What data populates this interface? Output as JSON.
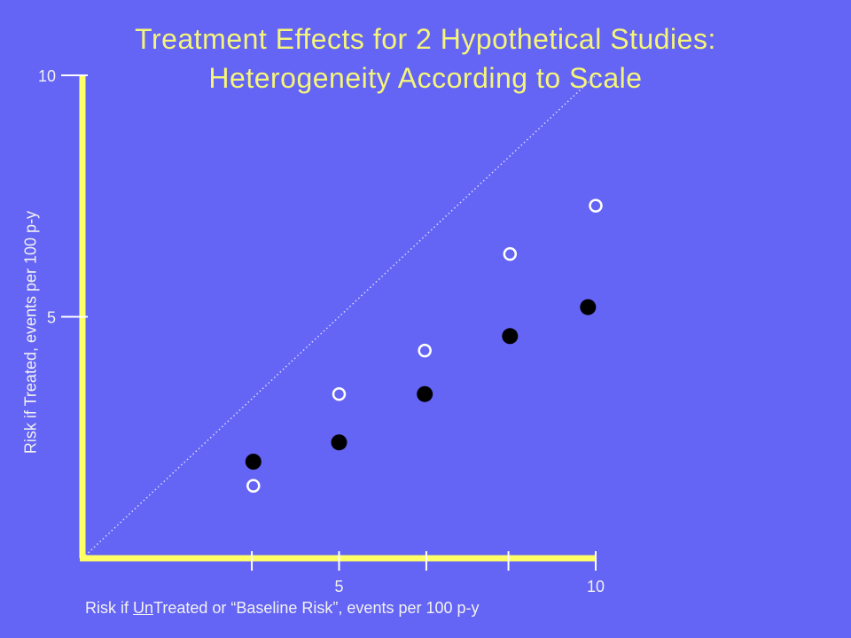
{
  "chart_data": {
    "type": "scatter",
    "title_line1": "Treatment Effects for 2 Hypothetical Studies:",
    "title_line2": "Heterogeneity According to Scale",
    "xlabel_prefix": "Risk if ",
    "xlabel_underlined": "Un",
    "xlabel_suffix": "Treated or “Baseline Risk”, events per 100 p-y",
    "ylabel": "Risk if Treated, events per 100 p-y",
    "xlim": [
      0,
      10
    ],
    "ylim": [
      0,
      10
    ],
    "x_ticks": [
      3.3,
      5,
      6.7,
      8.3,
      10
    ],
    "x_tick_labels": [
      {
        "value": 5,
        "label": "5"
      },
      {
        "value": 10,
        "label": "10"
      }
    ],
    "y_ticks": [
      5,
      10
    ],
    "y_tick_labels": [
      {
        "value": 5,
        "label": "5"
      },
      {
        "value": 10,
        "label": "10"
      }
    ],
    "reference_line": {
      "style": "dotted",
      "from": [
        0,
        0
      ],
      "to": [
        10,
        10
      ]
    },
    "series": [
      {
        "marker": "open-circle",
        "color": "#ffffff",
        "points": [
          {
            "x": 3.33,
            "y": 1.5
          },
          {
            "x": 5.0,
            "y": 3.4
          },
          {
            "x": 6.67,
            "y": 4.3
          },
          {
            "x": 8.33,
            "y": 6.3
          },
          {
            "x": 10.0,
            "y": 7.3
          }
        ]
      },
      {
        "marker": "filled-circle",
        "color": "#000000",
        "points": [
          {
            "x": 3.33,
            "y": 2.0
          },
          {
            "x": 5.0,
            "y": 2.4
          },
          {
            "x": 6.67,
            "y": 3.4
          },
          {
            "x": 8.33,
            "y": 4.6
          },
          {
            "x": 9.85,
            "y": 5.2
          }
        ]
      }
    ],
    "axis_color": "#ffff66"
  }
}
